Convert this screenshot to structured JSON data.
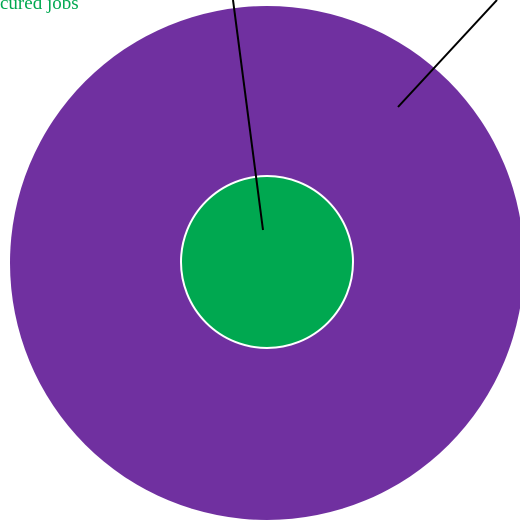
{
  "label": "cured jobs"
}
